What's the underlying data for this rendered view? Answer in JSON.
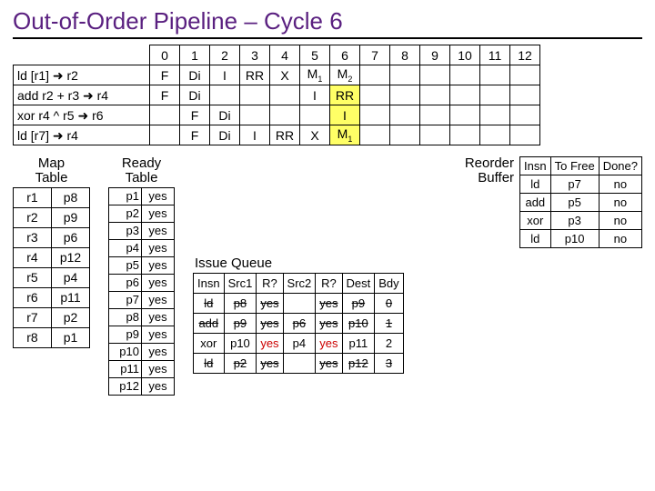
{
  "title": "Out-of-Order Pipeline – Cycle 6",
  "cycles": [
    "0",
    "1",
    "2",
    "3",
    "4",
    "5",
    "6",
    "7",
    "8",
    "9",
    "10",
    "11",
    "12"
  ],
  "pipeline": [
    {
      "instr": "ld  [r1] ➜ r2",
      "cells": [
        "F",
        "Di",
        "I",
        "RR",
        "X",
        "M1",
        "M2",
        "",
        "",
        "",
        "",
        "",
        ""
      ],
      "sub": [
        0,
        0,
        0,
        0,
        0,
        1,
        1,
        0,
        0,
        0,
        0,
        0,
        0
      ],
      "hl": [
        0,
        0,
        0,
        0,
        0,
        0,
        0,
        0,
        0,
        0,
        0,
        0,
        0
      ]
    },
    {
      "instr": "add r2 + r3 ➜ r4",
      "cells": [
        "F",
        "Di",
        "",
        "",
        "",
        "I",
        "RR",
        "",
        "",
        "",
        "",
        "",
        ""
      ],
      "sub": [
        0,
        0,
        0,
        0,
        0,
        0,
        0,
        0,
        0,
        0,
        0,
        0,
        0
      ],
      "hl": [
        0,
        0,
        0,
        0,
        0,
        0,
        1,
        0,
        0,
        0,
        0,
        0,
        0
      ]
    },
    {
      "instr": "xor r4 ^ r5 ➜ r6",
      "cells": [
        "",
        "F",
        "Di",
        "",
        "",
        "",
        "I",
        "",
        "",
        "",
        "",
        "",
        ""
      ],
      "sub": [
        0,
        0,
        0,
        0,
        0,
        0,
        0,
        0,
        0,
        0,
        0,
        0,
        0
      ],
      "hl": [
        0,
        0,
        0,
        0,
        0,
        0,
        1,
        0,
        0,
        0,
        0,
        0,
        0
      ]
    },
    {
      "instr": "ld  [r7] ➜ r4",
      "cells": [
        "",
        "F",
        "Di",
        "I",
        "RR",
        "X",
        "M1",
        "",
        "",
        "",
        "",
        "",
        ""
      ],
      "sub": [
        0,
        0,
        0,
        0,
        0,
        0,
        1,
        0,
        0,
        0,
        0,
        0,
        0
      ],
      "hl": [
        0,
        0,
        0,
        0,
        0,
        0,
        1,
        0,
        0,
        0,
        0,
        0,
        0
      ]
    }
  ],
  "map_label": "Map\nTable",
  "map": [
    [
      "r1",
      "p8"
    ],
    [
      "r2",
      "p9"
    ],
    [
      "r3",
      "p6"
    ],
    [
      "r4",
      "p12"
    ],
    [
      "r5",
      "p4"
    ],
    [
      "r6",
      "p11"
    ],
    [
      "r7",
      "p2"
    ],
    [
      "r8",
      "p1"
    ]
  ],
  "ready_label": "Ready\nTable",
  "ready": [
    [
      "p1",
      "yes"
    ],
    [
      "p2",
      "yes"
    ],
    [
      "p3",
      "yes"
    ],
    [
      "p4",
      "yes"
    ],
    [
      "p5",
      "yes"
    ],
    [
      "p6",
      "yes"
    ],
    [
      "p7",
      "yes"
    ],
    [
      "p8",
      "yes"
    ],
    [
      "p9",
      "yes"
    ],
    [
      "p10",
      "yes"
    ],
    [
      "p11",
      "yes"
    ],
    [
      "p12",
      "yes"
    ]
  ],
  "rob_label": "Reorder\nBuffer",
  "rob_headers": [
    "Insn",
    "To Free",
    "Done?"
  ],
  "rob": [
    [
      "ld",
      "p7",
      "no"
    ],
    [
      "add",
      "p5",
      "no"
    ],
    [
      "xor",
      "p3",
      "no"
    ],
    [
      "ld",
      "p10",
      "no"
    ]
  ],
  "iq_label": "Issue Queue",
  "iq_headers": [
    "Insn",
    "Src1",
    "R?",
    "Src2",
    "R?",
    "Dest",
    "Bdy"
  ],
  "iq": [
    {
      "cells": [
        "ld",
        "p8",
        "yes",
        "",
        "yes",
        "p9",
        "0"
      ],
      "strike": true,
      "red": [
        0,
        0,
        0,
        0,
        0,
        0,
        0
      ]
    },
    {
      "cells": [
        "add",
        "p9",
        "yes",
        "p6",
        "yes",
        "p10",
        "1"
      ],
      "strike": true,
      "red": [
        0,
        0,
        0,
        0,
        0,
        0,
        0
      ]
    },
    {
      "cells": [
        "xor",
        "p10",
        "yes",
        "p4",
        "yes",
        "p11",
        "2"
      ],
      "strike": false,
      "red": [
        0,
        0,
        1,
        0,
        1,
        0,
        0
      ]
    },
    {
      "cells": [
        "ld",
        "p2",
        "yes",
        "",
        "yes",
        "p12",
        "3"
      ],
      "strike": true,
      "red": [
        0,
        0,
        0,
        0,
        0,
        0,
        0
      ]
    }
  ]
}
